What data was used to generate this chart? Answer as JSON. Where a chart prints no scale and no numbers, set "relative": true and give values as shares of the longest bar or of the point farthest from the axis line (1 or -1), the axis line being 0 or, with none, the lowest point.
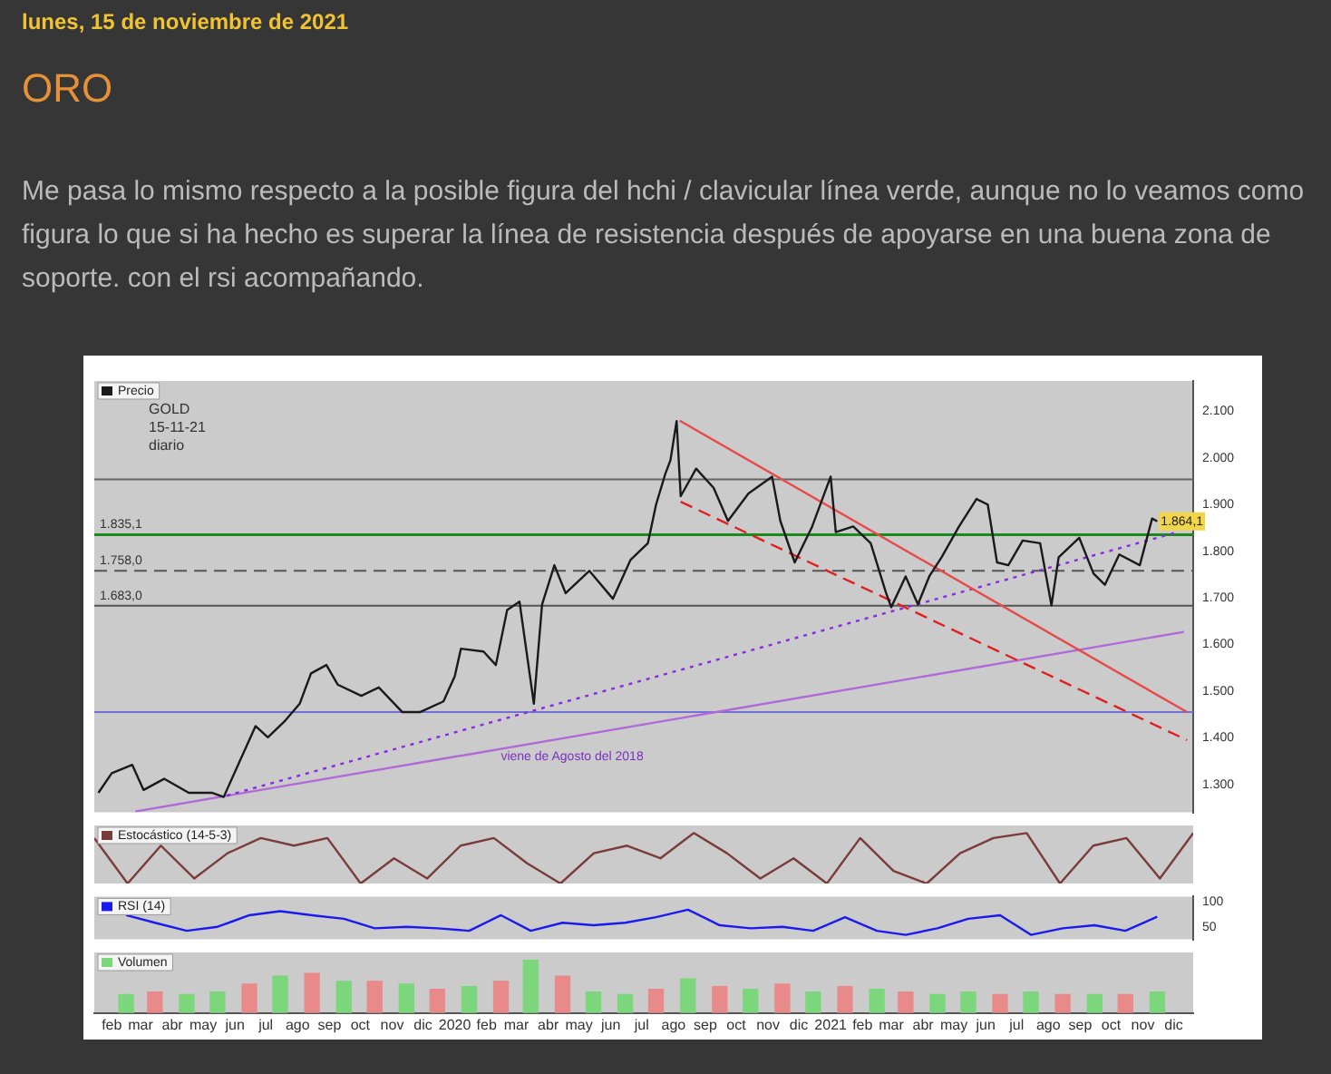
{
  "chart_data": [
    {
      "type": "line",
      "title": "ORO",
      "subtitle": "Me pasa lo mismo respecto a la posible figura del hchi / clavicular línea verde, aunque no lo veamos como figura lo que si ha hecho es superar la línea de resistencia después de apoyarse en una buena zona de soporte. con el rsi acompañando.",
      "annotations": [
        "lunes, 15 de noviembre de 2021",
        "GOLD\n15-11-21\ndiario",
        "viene de Agosto del 2018",
        {
          "text": "1.864,1",
          "x": "2021-11-15",
          "y": 1864
        }
      ],
      "legend": "top left",
      "tick_labels": "y",
      "xlim": [
        "2019-01-15",
        "2021-12-20"
      ],
      "ylim": [
        1240,
        2165
      ],
      "yticks": [
        {
          "value": 1300,
          "label": "1.300"
        },
        {
          "value": 1400,
          "label": "1.400"
        },
        {
          "value": 1500,
          "label": "1.500"
        },
        {
          "value": 1600,
          "label": "1.600"
        },
        {
          "value": 1700,
          "label": "1.700"
        },
        {
          "value": 1800,
          "label": "1.800"
        },
        {
          "value": 1900,
          "label": "1.900"
        },
        {
          "value": 2000,
          "label": "2.000"
        },
        {
          "value": 2100,
          "label": "2.100"
        }
      ],
      "ref_lines": [
        {
          "axis": "y",
          "value": 1758,
          "label": "1.758,0",
          "color": "#555555",
          "line_style": "dashed"
        },
        {
          "axis": "y",
          "value": 1683,
          "label": "1.683,0",
          "color": "#555555"
        },
        {
          "axis": "y",
          "value": 1954,
          "label": null,
          "color": "#666666"
        },
        {
          "axis": "y",
          "value": 1455,
          "label": null,
          "color": "#7070d8"
        },
        {
          "axis": "y",
          "value": 1835.1,
          "label": "1.835,1",
          "color": "#1a8a1a"
        }
      ],
      "series": [
        {
          "name": "Precio",
          "color": "#1a1a1a",
          "x": [
            "2019-01-19",
            "2019-02-01",
            "2019-02-21",
            "2019-03-04",
            "2019-03-24",
            "2019-04-17",
            "2019-05-10",
            "2019-05-21",
            "2019-06-04",
            "2019-06-21",
            "2019-07-03",
            "2019-07-20",
            "2019-08-03",
            "2019-08-14",
            "2019-08-29",
            "2019-09-09",
            "2019-10-02",
            "2019-10-19",
            "2019-11-11",
            "2019-11-28",
            "2019-12-21",
            "2020-01-01",
            "2020-01-07",
            "2020-01-29",
            "2020-02-10",
            "2020-02-21",
            "2020-03-04",
            "2020-03-18",
            "2020-03-26",
            "2020-04-07",
            "2020-04-18",
            "2020-05-11",
            "2020-06-03",
            "2020-06-20",
            "2020-07-07",
            "2020-07-15",
            "2020-07-24",
            "2020-07-29",
            "2020-08-04",
            "2020-08-08",
            "2020-08-23",
            "2020-09-09",
            "2020-09-23",
            "2020-10-13",
            "2020-11-05",
            "2020-11-13",
            "2020-11-27",
            "2020-12-14",
            "2021-01-01",
            "2021-01-06",
            "2021-01-23",
            "2021-02-09",
            "2021-02-24",
            "2021-03-01",
            "2021-03-15",
            "2021-03-27",
            "2021-04-07",
            "2021-04-19",
            "2021-05-06",
            "2021-05-23",
            "2021-06-03",
            "2021-06-12",
            "2021-06-23",
            "2021-07-07",
            "2021-07-24",
            "2021-08-04",
            "2021-08-11",
            "2021-08-31",
            "2021-09-14",
            "2021-09-25",
            "2021-10-09",
            "2021-10-29",
            "2021-11-10",
            "2021-11-15"
          ],
          "values": [
            1282,
            1324,
            1342,
            1288,
            1312,
            1282,
            1282,
            1273,
            1342,
            1425,
            1401,
            1437,
            1473,
            1538,
            1556,
            1514,
            1490,
            1508,
            1455,
            1455,
            1478,
            1532,
            1591,
            1585,
            1556,
            1674,
            1692,
            1473,
            1686,
            1770,
            1710,
            1758,
            1698,
            1781,
            1817,
            1900,
            1966,
            1995,
            2079,
            1918,
            1977,
            1936,
            1865,
            1924,
            1960,
            1865,
            1776,
            1853,
            1960,
            1841,
            1853,
            1817,
            1710,
            1680,
            1746,
            1686,
            1746,
            1787,
            1853,
            1912,
            1900,
            1776,
            1770,
            1823,
            1817,
            1684,
            1787,
            1829,
            1752,
            1728,
            1793,
            1770,
            1870,
            1864
          ]
        },
        {
          "type": "line",
          "color": "#e84a4a",
          "x": [
            "2020-08-07",
            "2021-12-14"
          ],
          "values": [
            2080,
            1455
          ]
        },
        {
          "type": "line",
          "color": "#e02020",
          "line_style": "dashed",
          "x": [
            "2020-08-08",
            "2021-12-14"
          ],
          "values": [
            1906,
            1395
          ]
        },
        {
          "type": "line",
          "color": "#8a2be2",
          "line_style": "dotted",
          "x": [
            "2019-05-24",
            "2021-12-05"
          ],
          "values": [
            1276,
            1841
          ]
        },
        {
          "type": "line",
          "color": "#b06ad8",
          "x": [
            "2019-02-24",
            "2021-12-11"
          ],
          "values": [
            1242,
            1627
          ]
        }
      ]
    },
    {
      "type": "line",
      "relative": true,
      "legend": "top left",
      "tick_labels": false,
      "categories": [
        null,
        null,
        null,
        null,
        null,
        null,
        null,
        null,
        null,
        null,
        null,
        null,
        null,
        null,
        null,
        null,
        null,
        null,
        null,
        null,
        null,
        null,
        null,
        null,
        null,
        null,
        null,
        null,
        null,
        null,
        null,
        null,
        null,
        null
      ],
      "series": [
        {
          "name": "Estocástico (14-5-3)",
          "color": "#7a3b3b",
          "values": [
            0.9,
            0,
            0.75,
            0.1,
            0.6,
            0.9,
            0.75,
            0.9,
            0,
            0.5,
            0.1,
            0.75,
            0.9,
            0.4,
            0,
            0.6,
            0.75,
            0.5,
            1,
            0.6,
            0.1,
            0.5,
            0,
            0.9,
            0.25,
            0,
            0.6,
            0.9,
            1,
            0,
            0.75,
            0.9,
            0.1,
            1
          ]
        }
      ]
    },
    {
      "type": "line",
      "legend": "top left",
      "tick_labels": "y",
      "xlim": [
        "2019-01-15",
        "2021-12-20"
      ],
      "ylim": [
        25,
        110
      ],
      "yticks": [
        50,
        100
      ],
      "x": [
        "2019-02-15",
        "2019-03-15",
        "2019-04-15",
        "2019-05-15",
        "2019-06-15",
        "2019-07-15",
        "2019-08-15",
        "2019-09-15",
        "2019-10-15",
        "2019-11-15",
        "2019-12-15",
        "2020-01-15",
        "2020-02-15",
        "2020-03-15",
        "2020-04-15",
        "2020-05-15",
        "2020-06-15",
        "2020-07-15",
        "2020-08-15",
        "2020-09-15",
        "2020-10-15",
        "2020-11-15",
        "2020-12-15",
        "2021-01-15",
        "2021-02-15",
        "2021-03-15",
        "2021-04-15",
        "2021-05-15",
        "2021-06-15",
        "2021-07-15",
        "2021-08-15",
        "2021-09-15",
        "2021-10-15",
        "2021-11-15"
      ],
      "series": [
        {
          "name": "RSI (14)",
          "color": "#1a1aee",
          "values": [
            73,
            58,
            42,
            50,
            73,
            81,
            73,
            66,
            47,
            50,
            47,
            42,
            73,
            42,
            58,
            53,
            58,
            69,
            84,
            53,
            47,
            50,
            42,
            69,
            42,
            34,
            47,
            66,
            73,
            34,
            47,
            53,
            42,
            70
          ]
        }
      ]
    },
    {
      "type": "bar",
      "relative": true,
      "legend": "top left",
      "tick_labels": "x",
      "xlim": [
        "2019-01-15",
        "2021-12-20"
      ],
      "xticks": [
        {
          "value": "2019-02-01",
          "label": "feb"
        },
        {
          "value": "2019-03-01",
          "label": "mar"
        },
        {
          "value": "2019-04-01",
          "label": "abr"
        },
        {
          "value": "2019-05-01",
          "label": "may"
        },
        {
          "value": "2019-06-01",
          "label": "jun"
        },
        {
          "value": "2019-07-01",
          "label": "jul"
        },
        {
          "value": "2019-08-01",
          "label": "ago"
        },
        {
          "value": "2019-09-01",
          "label": "sep"
        },
        {
          "value": "2019-10-01",
          "label": "oct"
        },
        {
          "value": "2019-11-01",
          "label": "nov"
        },
        {
          "value": "2019-12-01",
          "label": "dic"
        },
        {
          "value": "2020-01-01",
          "label": "2020"
        },
        {
          "value": "2020-02-01",
          "label": "feb"
        },
        {
          "value": "2020-03-01",
          "label": "mar"
        },
        {
          "value": "2020-04-01",
          "label": "abr"
        },
        {
          "value": "2020-05-01",
          "label": "may"
        },
        {
          "value": "2020-06-01",
          "label": "jun"
        },
        {
          "value": "2020-07-01",
          "label": "jul"
        },
        {
          "value": "2020-08-01",
          "label": "ago"
        },
        {
          "value": "2020-09-01",
          "label": "sep"
        },
        {
          "value": "2020-10-01",
          "label": "oct"
        },
        {
          "value": "2020-11-01",
          "label": "nov"
        },
        {
          "value": "2020-12-01",
          "label": "dic"
        },
        {
          "value": "2021-01-01",
          "label": "2021"
        },
        {
          "value": "2021-02-01",
          "label": "feb"
        },
        {
          "value": "2021-03-01",
          "label": "mar"
        },
        {
          "value": "2021-04-01",
          "label": "abr"
        },
        {
          "value": "2021-05-01",
          "label": "may"
        },
        {
          "value": "2021-06-01",
          "label": "jun"
        },
        {
          "value": "2021-07-01",
          "label": "jul"
        },
        {
          "value": "2021-08-01",
          "label": "ago"
        },
        {
          "value": "2021-09-01",
          "label": "sep"
        },
        {
          "value": "2021-10-01",
          "label": "oct"
        },
        {
          "value": "2021-11-01",
          "label": "nov"
        },
        {
          "value": "2021-12-01",
          "label": "dic"
        }
      ],
      "x": [
        "2019-02-15",
        "2019-03-15",
        "2019-04-15",
        "2019-05-15",
        "2019-06-15",
        "2019-07-15",
        "2019-08-15",
        "2019-09-15",
        "2019-10-15",
        "2019-11-15",
        "2019-12-15",
        "2020-01-15",
        "2020-02-15",
        "2020-03-15",
        "2020-04-15",
        "2020-05-15",
        "2020-06-15",
        "2020-07-15",
        "2020-08-15",
        "2020-09-15",
        "2020-10-15",
        "2020-11-15",
        "2020-12-15",
        "2021-01-15",
        "2021-02-15",
        "2021-03-15",
        "2021-04-15",
        "2021-05-15",
        "2021-06-15",
        "2021-07-15",
        "2021-08-15",
        "2021-09-15",
        "2021-10-15",
        "2021-11-15"
      ],
      "series": [
        {
          "name": "Volumen",
          "color": "#7cd67c",
          "colors": [
            "#7cd67c",
            "#e88a8a",
            "#7cd67c",
            "#7cd67c",
            "#e88a8a",
            "#7cd67c",
            "#e88a8a",
            "#7cd67c",
            "#e88a8a",
            "#7cd67c",
            "#e88a8a",
            "#7cd67c",
            "#e88a8a",
            "#7cd67c",
            "#e88a8a",
            "#7cd67c",
            "#7cd67c",
            "#e88a8a",
            "#7cd67c",
            "#e88a8a",
            "#7cd67c",
            "#e88a8a",
            "#7cd67c",
            "#e88a8a",
            "#7cd67c",
            "#e88a8a",
            "#7cd67c",
            "#7cd67c",
            "#e88a8a",
            "#7cd67c",
            "#e88a8a",
            "#7cd67c",
            "#e88a8a",
            "#7cd67c"
          ],
          "values": [
            0.35,
            0.4,
            0.35,
            0.4,
            0.55,
            0.7,
            0.75,
            0.6,
            0.6,
            0.55,
            0.45,
            0.5,
            0.6,
            1,
            0.7,
            0.4,
            0.35,
            0.45,
            0.65,
            0.5,
            0.45,
            0.55,
            0.4,
            0.5,
            0.45,
            0.4,
            0.35,
            0.4,
            0.35,
            0.4,
            0.35,
            0.35,
            0.35,
            0.4
          ]
        }
      ]
    }
  ]
}
